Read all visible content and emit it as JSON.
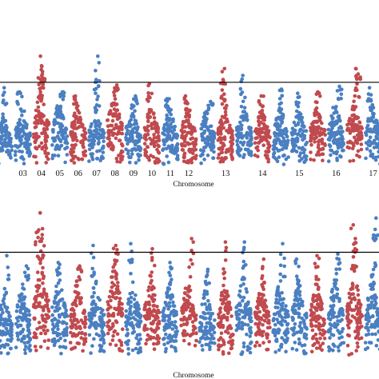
{
  "chart_data": [
    {
      "type": "scatter",
      "title": "",
      "xlabel": "Chromosome",
      "ylabel": "",
      "threshold": 6.0,
      "ylim": [
        0,
        8.5
      ],
      "grid": false,
      "legend": "none",
      "colors": {
        "odd": "#4a7fc1",
        "even": "#c04a4e",
        "threshold_line": "#000000"
      },
      "chromosomes": [
        {
          "label": "",
          "color": "blue",
          "peaks": [
            3.5,
            5.6
          ]
        },
        {
          "label": "03",
          "color": "blue",
          "peaks": [
            4.4,
            5.3
          ]
        },
        {
          "label": "04",
          "color": "red",
          "peaks": [
            5.5,
            7.9,
            7.2,
            6.6
          ]
        },
        {
          "label": "05",
          "color": "blue",
          "peaks": [
            4.6,
            5.3
          ]
        },
        {
          "label": "06",
          "color": "red",
          "peaks": [
            4.4,
            5.0
          ]
        },
        {
          "label": "07",
          "color": "blue",
          "peaks": [
            4.2,
            7.9,
            6.2
          ]
        },
        {
          "label": "08",
          "color": "red",
          "peaks": [
            5.4,
            5.8
          ]
        },
        {
          "label": "09",
          "color": "blue",
          "peaks": [
            4.4,
            5.0
          ]
        },
        {
          "label": "10",
          "color": "red",
          "peaks": [
            4.6,
            5.9
          ]
        },
        {
          "label": "11",
          "color": "blue",
          "peaks": [
            4.2,
            4.8
          ]
        },
        {
          "label": "12",
          "color": "red",
          "peaks": [
            4.4,
            5.0
          ]
        },
        {
          "label": "",
          "color": "blue",
          "peaks": [
            4.0,
            4.6
          ]
        },
        {
          "label": "13",
          "color": "red",
          "peaks": [
            4.3,
            7.0,
            6.2
          ]
        },
        {
          "label": "",
          "color": "blue",
          "peaks": [
            4.6,
            6.5
          ]
        },
        {
          "label": "14",
          "color": "red",
          "peaks": [
            4.2,
            5.0
          ]
        },
        {
          "label": "",
          "color": "blue",
          "peaks": [
            4.4,
            5.5
          ]
        },
        {
          "label": "15",
          "color": "blue",
          "peaks": [
            4.3,
            5.2
          ]
        },
        {
          "label": "",
          "color": "red",
          "peaks": [
            4.4,
            5.3
          ]
        },
        {
          "label": "16",
          "color": "blue",
          "peaks": [
            4.6,
            5.7
          ]
        },
        {
          "label": "",
          "color": "red",
          "peaks": [
            4.8,
            7.0,
            6.6
          ]
        },
        {
          "label": "17",
          "color": "blue",
          "peaks": [
            4.5,
            5.6
          ]
        }
      ]
    },
    {
      "type": "scatter",
      "title": "",
      "xlabel": "Chromosome",
      "ylabel": "",
      "threshold": 6.0,
      "ylim": [
        0,
        8.5
      ],
      "grid": false,
      "legend": "none",
      "colors": {
        "odd": "#4a7fc1",
        "even": "#c04a4e",
        "threshold_line": "#000000"
      },
      "chromosomes": [
        {
          "label": "",
          "color": "blue",
          "peaks": [
            3.6,
            5.8
          ]
        },
        {
          "label": "",
          "color": "blue",
          "peaks": [
            4.2,
            5.2
          ]
        },
        {
          "label": "",
          "color": "red",
          "peaks": [
            5.6,
            8.3,
            7.2,
            6.8
          ]
        },
        {
          "label": "",
          "color": "blue",
          "peaks": [
            4.6,
            5.4
          ]
        },
        {
          "label": "",
          "color": "red",
          "peaks": [
            4.4,
            5.2
          ]
        },
        {
          "label": "",
          "color": "blue",
          "peaks": [
            4.4,
            6.4
          ]
        },
        {
          "label": "",
          "color": "red",
          "peaks": [
            5.4,
            6.4
          ]
        },
        {
          "label": "",
          "color": "blue",
          "peaks": [
            4.4,
            6.5
          ]
        },
        {
          "label": "",
          "color": "red",
          "peaks": [
            4.6,
            6.2
          ]
        },
        {
          "label": "",
          "color": "blue",
          "peaks": [
            4.2,
            5.4
          ]
        },
        {
          "label": "",
          "color": "red",
          "peaks": [
            4.4,
            6.8
          ]
        },
        {
          "label": "",
          "color": "blue",
          "peaks": [
            4.0,
            5.0
          ]
        },
        {
          "label": "",
          "color": "red",
          "peaks": [
            4.3,
            6.6
          ]
        },
        {
          "label": "",
          "color": "blue",
          "peaks": [
            4.6,
            6.6
          ]
        },
        {
          "label": "",
          "color": "red",
          "peaks": [
            4.2,
            5.6
          ]
        },
        {
          "label": "",
          "color": "blue",
          "peaks": [
            4.4,
            6.5
          ]
        },
        {
          "label": "",
          "color": "blue",
          "peaks": [
            4.3,
            5.6
          ]
        },
        {
          "label": "",
          "color": "red",
          "peaks": [
            4.4,
            5.8
          ]
        },
        {
          "label": "",
          "color": "blue",
          "peaks": [
            4.6,
            5.9
          ]
        },
        {
          "label": "",
          "color": "red",
          "peaks": [
            5.0,
            7.6,
            6.8
          ]
        },
        {
          "label": "",
          "color": "blue",
          "peaks": [
            4.5,
            8.0,
            7.0
          ]
        }
      ]
    }
  ]
}
